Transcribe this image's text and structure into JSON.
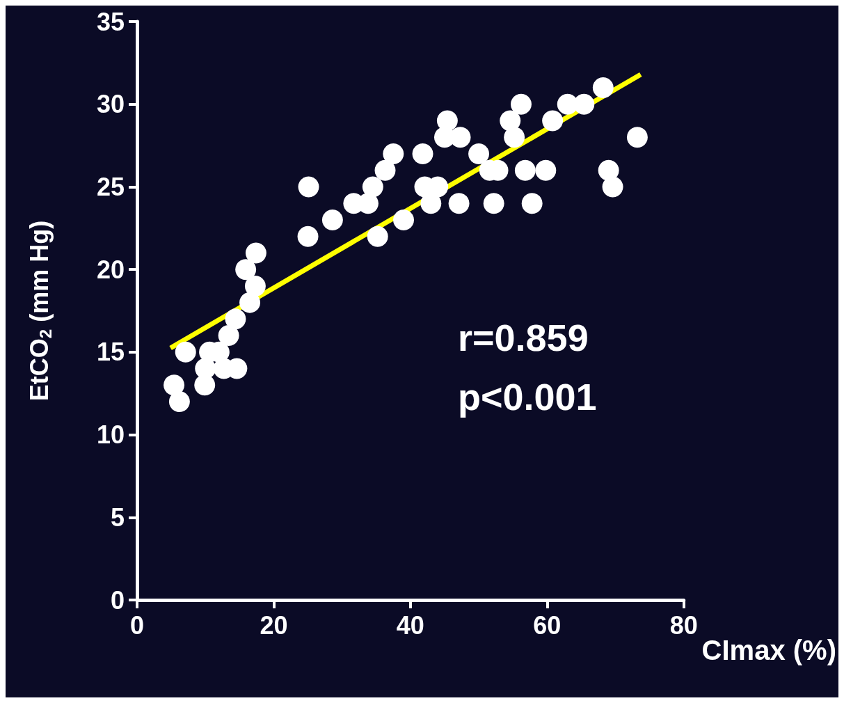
{
  "chart_data": {
    "type": "scatter",
    "xlabel": "CImax (%)",
    "ylabel": "EtCO$_{2}$ (mm Hg)",
    "xlim": [
      0,
      80
    ],
    "xticks": [
      0,
      20,
      40,
      60,
      80
    ],
    "ylim": [
      0,
      35
    ],
    "yticks": [
      0,
      5,
      10,
      15,
      20,
      25,
      30,
      35
    ],
    "grid": false,
    "annotations": [
      "r=0.859",
      "p<0.001"
    ],
    "series": [
      {
        "color": "#ffffff",
        "marker": "circle",
        "x": [
          5.4,
          6.2,
          7.1,
          10.0,
          9.9,
          10.6,
          12.0,
          12.7,
          13.4,
          14.6,
          14.4,
          15.9,
          16.5,
          17.3,
          17.4,
          25.0,
          25.1,
          28.6,
          31.7,
          33.8,
          34.5,
          35.2,
          36.3,
          37.5,
          39.0,
          41.8,
          42.1,
          43.0,
          44.0,
          45.0,
          45.4,
          47.3,
          47.1,
          50.0,
          51.6,
          52.8,
          52.2,
          54.6,
          55.2,
          56.2,
          56.8,
          57.8,
          59.8,
          60.8,
          63.0,
          65.4,
          68.2,
          69.0,
          69.6,
          73.2
        ],
        "values": [
          13,
          12,
          15,
          14,
          13,
          15,
          15,
          14,
          16,
          14,
          17,
          20,
          18,
          19,
          21,
          22,
          25,
          23,
          24,
          24,
          25,
          22,
          26,
          27,
          23,
          27,
          25,
          24,
          25,
          28,
          29,
          28,
          24,
          27,
          26,
          26,
          24,
          29,
          28,
          30,
          26,
          24,
          26,
          29,
          30,
          30,
          31,
          26,
          25,
          28
        ]
      },
      {
        "type": "line",
        "color": "#ffff00",
        "marker": "none",
        "x": [
          4.9,
          73.7
        ],
        "values": [
          15.25,
          31.8
        ]
      }
    ]
  }
}
